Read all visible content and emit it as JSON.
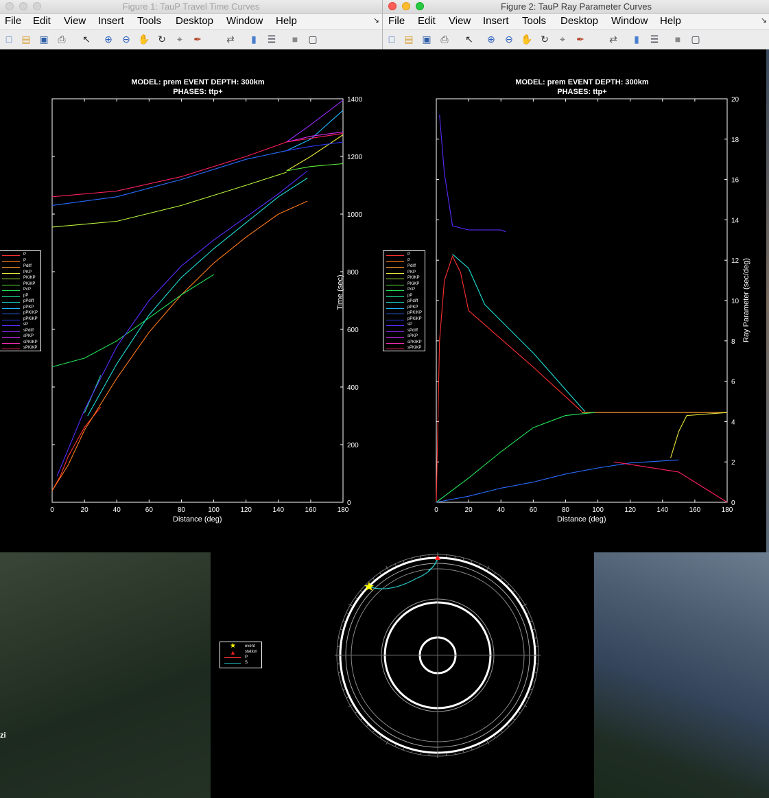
{
  "window1": {
    "title": "Figure 1: TauP Travel Time Curves",
    "menus": [
      "File",
      "Edit",
      "View",
      "Insert",
      "Tools",
      "Desktop",
      "Window",
      "Help"
    ]
  },
  "window2": {
    "title": "Figure 2: TauP Ray Parameter Curves",
    "menus": [
      "File",
      "Edit",
      "View",
      "Insert",
      "Tools",
      "Desktop",
      "Window",
      "Help"
    ]
  },
  "toolbar_icons": [
    "new-figure-icon",
    "open-file-icon",
    "save-icon",
    "print-icon",
    "edit-plot-arrow-icon",
    "zoom-in-icon",
    "zoom-out-icon",
    "pan-hand-icon",
    "rotate-3d-icon",
    "data-cursor-icon",
    "brush-icon",
    "link-plot-icon",
    "insert-colorbar-icon",
    "insert-legend-icon",
    "hide-plot-tools-icon",
    "show-plot-tools-icon"
  ],
  "figure1": {
    "title_line1": "MODEL: prem  EVENT DEPTH: 300km",
    "title_line2": "PHASES: ttp+",
    "xlabel": "Distance (deg)",
    "ylabel": "Time (sec)"
  },
  "figure2": {
    "title_line1": "MODEL: prem  EVENT DEPTH: 300km",
    "title_line2": "PHASES: ttp+",
    "xlabel": "Distance (deg)",
    "ylabel": "Ray Parameter (sec/deg)"
  },
  "legend": [
    {
      "label": "P",
      "color": "#ff3030"
    },
    {
      "label": "P",
      "color": "#ff7a1a"
    },
    {
      "label": "Pdiff",
      "color": "#ff9d2e"
    },
    {
      "label": "PKP",
      "color": "#e8e83a"
    },
    {
      "label": "PKIKP",
      "color": "#b6f23a"
    },
    {
      "label": "PKiKP",
      "color": "#5cf03a"
    },
    {
      "label": "PcP",
      "color": "#22e35a"
    },
    {
      "label": "pP",
      "color": "#1ee89a"
    },
    {
      "label": "pPdiff",
      "color": "#1ee0d8"
    },
    {
      "label": "pPKP",
      "color": "#1fb8ff"
    },
    {
      "label": "pPKIKP",
      "color": "#2a6cff"
    },
    {
      "label": "pPKiKP",
      "color": "#2a3cff"
    },
    {
      "label": "sP",
      "color": "#5a2cff"
    },
    {
      "label": "sPdiff",
      "color": "#9a2cff"
    },
    {
      "label": "sPKP",
      "color": "#d22cf0"
    },
    {
      "label": "sPKIKP",
      "color": "#f02cb0"
    },
    {
      "label": "sPKiKP",
      "color": "#ff2060"
    }
  ],
  "ray_legend": [
    {
      "label": "event",
      "color": "#ffff00",
      "marker": "star-icon"
    },
    {
      "label": "station",
      "color": "#ff2020",
      "marker": "triangle-icon"
    },
    {
      "label": "P",
      "color": "#ff3030"
    },
    {
      "label": "S",
      "color": "#28c8c8"
    }
  ],
  "chart_data": [
    {
      "type": "line",
      "title": "MODEL: prem  EVENT DEPTH: 300km",
      "subtitle": "PHASES: ttp+",
      "xlabel": "Distance (deg)",
      "ylabel": "Time (sec)",
      "xlim": [
        0,
        180
      ],
      "ylim": [
        0,
        1400
      ],
      "xticks": [
        0,
        20,
        40,
        60,
        80,
        100,
        120,
        140,
        160,
        180
      ],
      "yticks": [
        0,
        200,
        400,
        600,
        800,
        1000,
        1200,
        1400
      ],
      "y_axis_side": "right",
      "grid": false,
      "legend_position": "left, outside",
      "series": [
        {
          "name": "P",
          "color": "#ff3030",
          "x": [
            0,
            5,
            10,
            20,
            30
          ],
          "y": [
            40,
            90,
            160,
            260,
            330
          ]
        },
        {
          "name": "P",
          "color": "#ff7a1a",
          "x": [
            0,
            10,
            20,
            40,
            60,
            80,
            100,
            120,
            140,
            158
          ],
          "y": [
            40,
            130,
            250,
            430,
            590,
            720,
            830,
            920,
            1000,
            1045
          ]
        },
        {
          "name": "PKP",
          "color": "#e8e83a",
          "x": [
            145,
            160,
            180
          ],
          "y": [
            1150,
            1200,
            1275
          ]
        },
        {
          "name": "PKIKP",
          "color": "#b6f23a",
          "x": [
            0,
            40,
            80,
            120,
            145
          ],
          "y": [
            955,
            975,
            1030,
            1100,
            1145
          ]
        },
        {
          "name": "PKiKP",
          "color": "#5cf03a",
          "x": [
            145,
            160,
            180
          ],
          "y": [
            1150,
            1165,
            1175
          ]
        },
        {
          "name": "PcP",
          "color": "#22e35a",
          "x": [
            0,
            20,
            40,
            60,
            80,
            100
          ],
          "y": [
            470,
            500,
            560,
            640,
            720,
            790
          ]
        },
        {
          "name": "pP",
          "color": "#1ee89a",
          "x": [
            20,
            30
          ],
          "y": [
            310,
            440
          ]
        },
        {
          "name": "pPdiff",
          "color": "#1ee0d8",
          "x": [
            22,
            40,
            60,
            80,
            100,
            120,
            140,
            158
          ],
          "y": [
            300,
            480,
            650,
            780,
            880,
            970,
            1060,
            1125
          ]
        },
        {
          "name": "pPKP",
          "color": "#1fb8ff",
          "x": [
            145,
            160,
            180
          ],
          "y": [
            1220,
            1260,
            1360
          ]
        },
        {
          "name": "pPKIKP",
          "color": "#2a6cff",
          "x": [
            0,
            40,
            80,
            120,
            145
          ],
          "y": [
            1030,
            1060,
            1120,
            1190,
            1220
          ]
        },
        {
          "name": "pPKiKP",
          "color": "#2a3cff",
          "x": [
            145,
            160,
            180
          ],
          "y": [
            1220,
            1235,
            1250
          ]
        },
        {
          "name": "sP",
          "color": "#5a2cff",
          "x": [
            3,
            20,
            40,
            60,
            80,
            100,
            120,
            140,
            158
          ],
          "y": [
            90,
            320,
            540,
            700,
            820,
            910,
            990,
            1070,
            1150
          ]
        },
        {
          "name": "sPdiff",
          "color": "#9a2cff",
          "x": [
            145,
            160,
            180
          ],
          "y": [
            1250,
            1310,
            1395
          ]
        },
        {
          "name": "sPKP",
          "color": "#d22cf0",
          "x": [
            145,
            160,
            180
          ],
          "y": [
            1250,
            1270,
            1285
          ]
        },
        {
          "name": "sPKiKP",
          "color": "#ff2060",
          "x": [
            0,
            40,
            80,
            120,
            145,
            180
          ],
          "y": [
            1060,
            1080,
            1130,
            1200,
            1250,
            1280
          ]
        }
      ]
    },
    {
      "type": "line",
      "title": "MODEL: prem  EVENT DEPTH: 300km",
      "subtitle": "PHASES: ttp+",
      "xlabel": "Distance (deg)",
      "ylabel": "Ray Parameter (sec/deg)",
      "xlim": [
        0,
        180
      ],
      "ylim": [
        0,
        20
      ],
      "xticks": [
        0,
        20,
        40,
        60,
        80,
        100,
        120,
        140,
        160,
        180
      ],
      "yticks": [
        0,
        2,
        4,
        6,
        8,
        10,
        12,
        14,
        16,
        18,
        20
      ],
      "y_axis_side": "right",
      "grid": false,
      "legend_position": "left, outside",
      "series": [
        {
          "name": "P",
          "color": "#ff3030",
          "x": [
            0,
            2,
            5,
            10,
            15,
            20,
            30,
            60,
            90
          ],
          "y": [
            0,
            8,
            11,
            12.2,
            11.4,
            9.5,
            8.8,
            6.7,
            4.5
          ]
        },
        {
          "name": "Pdiff",
          "color": "#ff9d2e",
          "x": [
            90,
            180
          ],
          "y": [
            4.45,
            4.45
          ]
        },
        {
          "name": "PKP",
          "color": "#e8e83a",
          "x": [
            145,
            150,
            155,
            180
          ],
          "y": [
            2.2,
            3.5,
            4.3,
            4.45
          ]
        },
        {
          "name": "PcP",
          "color": "#22e35a",
          "x": [
            0,
            20,
            40,
            60,
            80,
            98
          ],
          "y": [
            0,
            1.2,
            2.5,
            3.7,
            4.3,
            4.45
          ]
        },
        {
          "name": "pPdiff",
          "color": "#1ee0d8",
          "x": [
            10,
            20,
            30,
            60,
            92
          ],
          "y": [
            12.3,
            11.6,
            9.8,
            7.4,
            4.5
          ]
        },
        {
          "name": "pPKIKP",
          "color": "#2a6cff",
          "x": [
            0,
            20,
            40,
            60,
            80,
            100,
            120,
            150
          ],
          "y": [
            0,
            0.3,
            0.7,
            1.0,
            1.4,
            1.7,
            1.95,
            2.1
          ]
        },
        {
          "name": "sP",
          "color": "#5a2cff",
          "x": [
            2,
            5,
            10,
            20,
            40,
            43
          ],
          "y": [
            19.2,
            16.3,
            13.7,
            13.5,
            13.5,
            13.4
          ]
        },
        {
          "name": "sPKiKP",
          "color": "#ff2060",
          "x": [
            110,
            150,
            180
          ],
          "y": [
            2.0,
            1.5,
            0
          ]
        }
      ]
    }
  ]
}
